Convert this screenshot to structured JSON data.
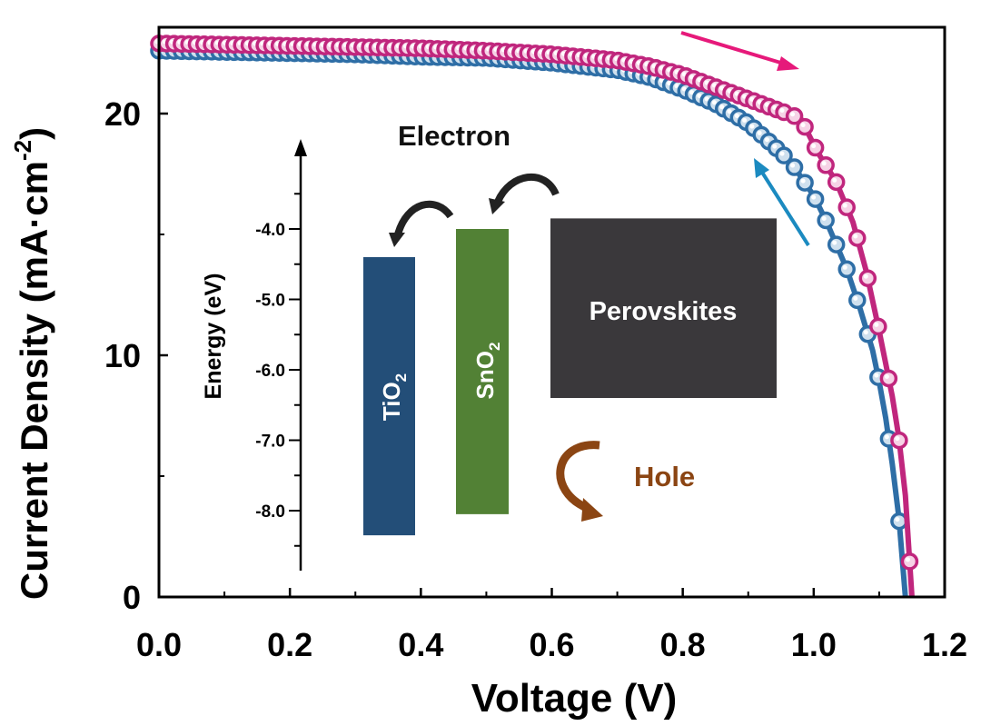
{
  "chart_data": {
    "type": "line",
    "xlabel": "Voltage (V)",
    "ylabel": {
      "main": "Current Density (mA·cm",
      "sup": "-2",
      "close": ")"
    },
    "xlim": [
      0,
      1.2
    ],
    "ylim": [
      0,
      23.6
    ],
    "xticks": [
      "0.0",
      "0.2",
      "0.4",
      "0.6",
      "0.8",
      "1.0",
      "1.2"
    ],
    "yticks": [
      "0",
      "10",
      "20"
    ],
    "grid": false,
    "series": [
      {
        "color": "#2e6ea6",
        "sweep": "reverse",
        "x": [
          0,
          0.1,
          0.2,
          0.3,
          0.4,
          0.5,
          0.6,
          0.7,
          0.75,
          0.8,
          0.85,
          0.9,
          0.95,
          0.97,
          1.0,
          1.02,
          1.05,
          1.07,
          1.09,
          1.1,
          1.11,
          1.12,
          1.13,
          1.14
        ],
        "y": [
          22.6,
          22.55,
          22.5,
          22.45,
          22.35,
          22.3,
          22.1,
          21.8,
          21.5,
          21.0,
          20.4,
          19.6,
          18.4,
          17.8,
          16.6,
          15.5,
          13.6,
          12.0,
          10.2,
          8.9,
          7.4,
          5.5,
          3.3,
          0.0
        ]
      },
      {
        "color": "#c0267d",
        "sweep": "forward",
        "x": [
          0,
          0.1,
          0.2,
          0.3,
          0.4,
          0.5,
          0.6,
          0.7,
          0.75,
          0.8,
          0.85,
          0.9,
          0.95,
          0.98,
          1.006,
          1.034,
          1.06,
          1.08,
          1.1,
          1.12,
          1.13,
          1.14,
          1.15
        ],
        "y": [
          22.9,
          22.85,
          22.8,
          22.75,
          22.7,
          22.6,
          22.45,
          22.2,
          21.95,
          21.6,
          21.1,
          20.6,
          20.1,
          19.8,
          18.4,
          17.2,
          15.5,
          13.5,
          11.0,
          8.3,
          6.6,
          4.2,
          0.0
        ]
      }
    ],
    "annotations": {
      "forward_arrow_color": "#e6197a",
      "reverse_arrow_color": "#1b8ac0"
    },
    "inset": {
      "type": "energy-diagram",
      "ylabel": "Energy (eV)",
      "yticks": [
        "-4.0",
        "-5.0",
        "-6.0",
        "-7.0",
        "-8.0"
      ],
      "electron_label": "Electron",
      "hole_label": "Hole",
      "hole_color": "#8b4513",
      "layers": [
        {
          "name": "TiO",
          "sub": "2",
          "top": -4.4,
          "bottom": -8.35,
          "color": "#234e78"
        },
        {
          "name": "SnO",
          "sub": "2",
          "top": -4.0,
          "bottom": -8.05,
          "color": "#528135"
        },
        {
          "name": "Perovskites",
          "sub": "",
          "top": -3.85,
          "bottom": -6.4,
          "color": "#3a383b"
        }
      ]
    }
  }
}
